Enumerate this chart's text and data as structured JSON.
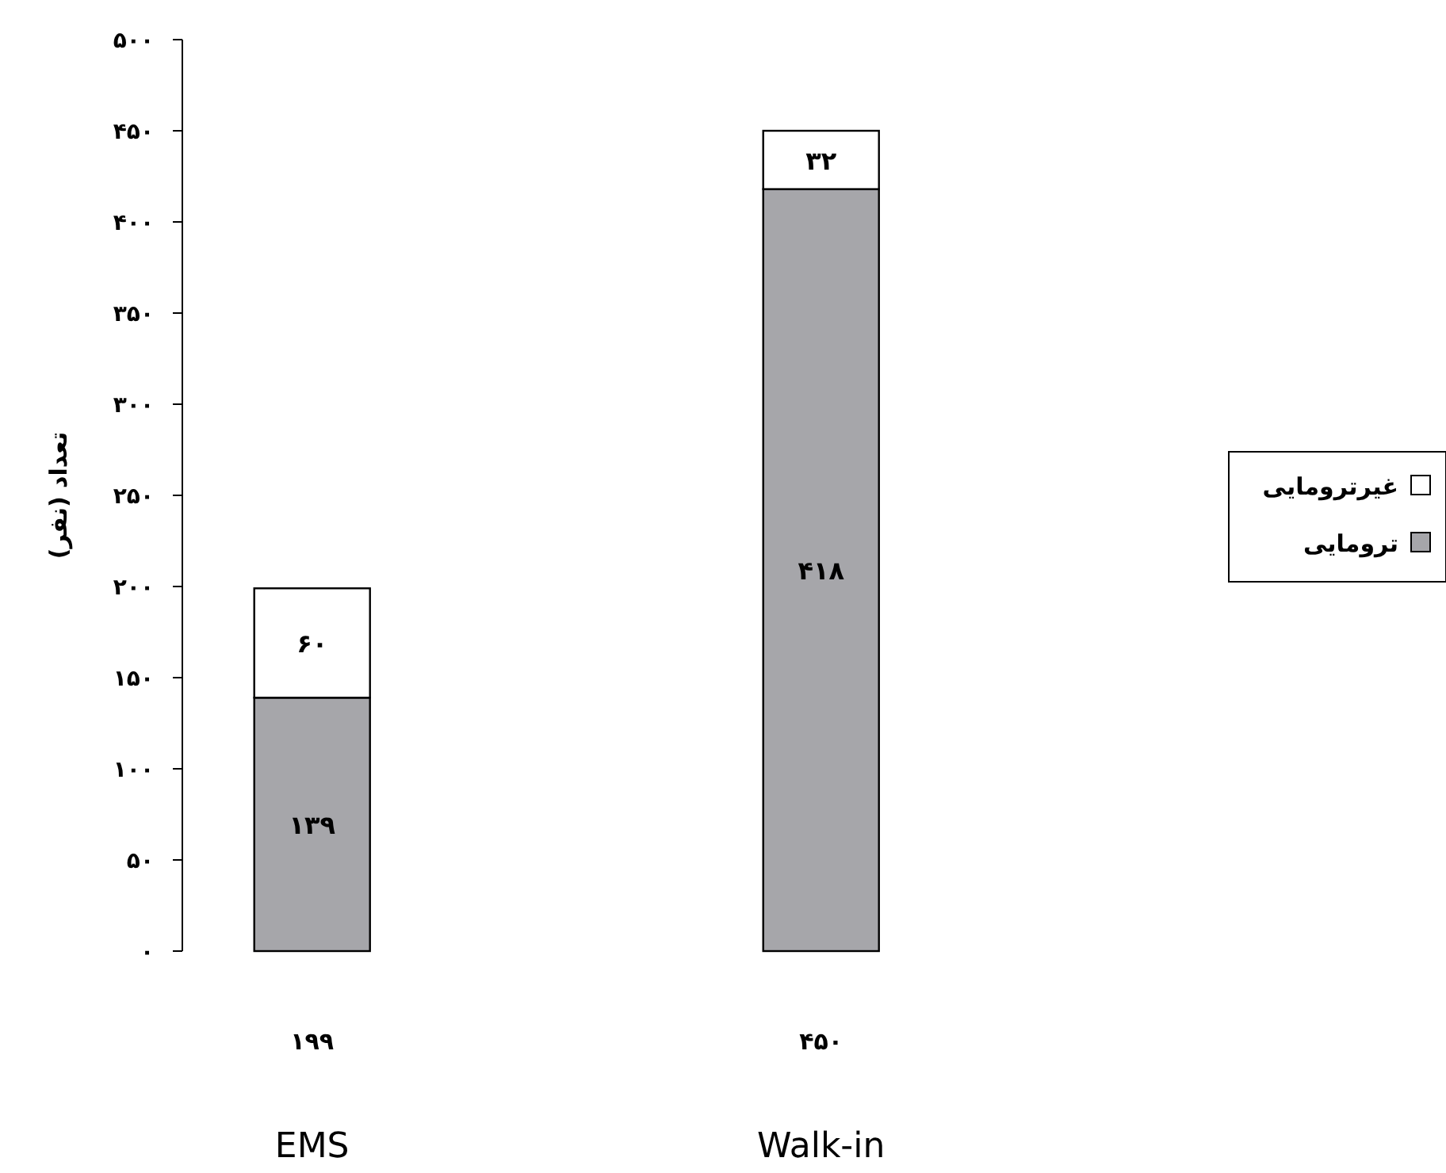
{
  "chart_data": {
    "type": "bar",
    "ylabel": "تعداد (نفر)",
    "categories": [
      "EMS",
      "Walk-in"
    ],
    "stacked": true,
    "series": [
      {
        "name": "ترومایی",
        "color": "#a6a6aa",
        "values": [
          139,
          418
        ],
        "value_labels": [
          "۱۳۹",
          "۴۱۸"
        ]
      },
      {
        "name": "غیرترومایی",
        "color": "#ffffff",
        "values": [
          60,
          32
        ],
        "value_labels": [
          "۶۰",
          "۳۲"
        ]
      }
    ],
    "totals": [
      "۱۹۹",
      "۴۵۰"
    ],
    "ylim": [
      0,
      500
    ],
    "yticks": [
      {
        "value": 0,
        "label": "۰"
      },
      {
        "value": 50,
        "label": "۵۰"
      },
      {
        "value": 100,
        "label": "۱۰۰"
      },
      {
        "value": 150,
        "label": "۱۵۰"
      },
      {
        "value": 200,
        "label": "۲۰۰"
      },
      {
        "value": 250,
        "label": "۲۵۰"
      },
      {
        "value": 300,
        "label": "۳۰۰"
      },
      {
        "value": 350,
        "label": "۳۵۰"
      },
      {
        "value": 400,
        "label": "۴۰۰"
      },
      {
        "value": 450,
        "label": "۴۵۰"
      },
      {
        "value": 500,
        "label": "۵۰۰"
      }
    ],
    "legend": "right"
  }
}
